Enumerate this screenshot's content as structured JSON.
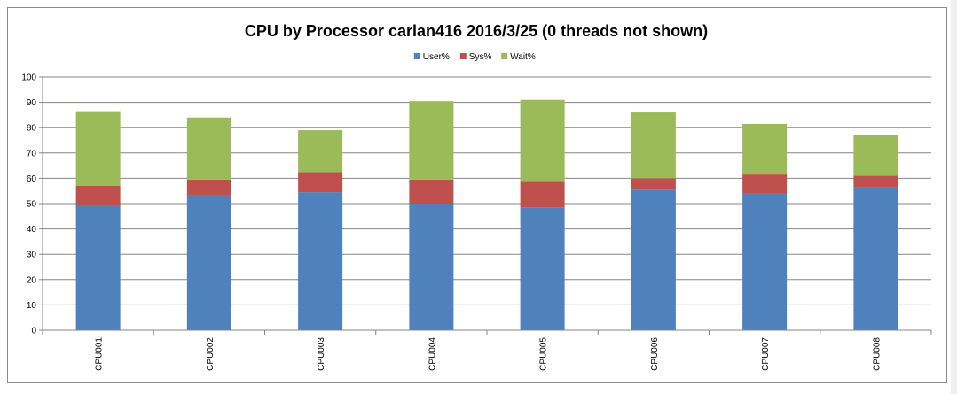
{
  "chart_data": {
    "type": "bar",
    "stacked": true,
    "title": "CPU by Processor carlan416   2016/3/25     (0 threads not shown)",
    "xlabel": "",
    "ylabel": "",
    "ylim": [
      0,
      100
    ],
    "yticks": [
      "0",
      "10",
      "20",
      "30",
      "40",
      "50",
      "60",
      "70",
      "80",
      "90",
      "100"
    ],
    "grid": true,
    "legend_position": "top",
    "categories": [
      "CPU001",
      "CPU002",
      "CPU003",
      "CPU004",
      "CPU005",
      "CPU006",
      "CPU007",
      "CPU008"
    ],
    "series": [
      {
        "name": "User%",
        "color": "#4f81bd",
        "values": [
          49.5,
          53.5,
          54.5,
          50,
          48.5,
          55.5,
          54,
          56.5
        ]
      },
      {
        "name": "Sys%",
        "color": "#c0504d",
        "values": [
          7.5,
          6,
          8,
          9.5,
          10.5,
          4.5,
          7.5,
          4.5
        ]
      },
      {
        "name": "Wait%",
        "color": "#9bbb59",
        "values": [
          29.5,
          24.5,
          16.5,
          31,
          32,
          26,
          20,
          16
        ]
      }
    ]
  }
}
